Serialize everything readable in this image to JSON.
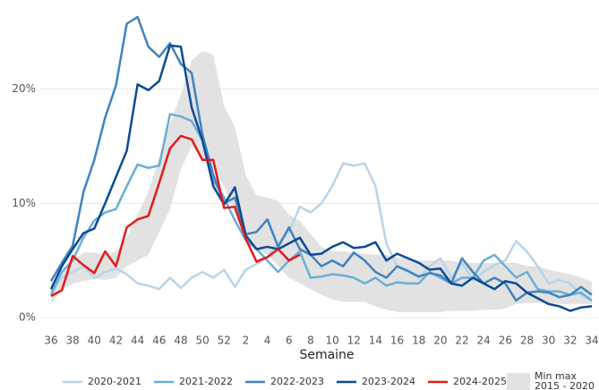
{
  "chart_data": {
    "type": "line",
    "x_label": "Semaine",
    "categories": [
      "36",
      null,
      "38",
      null,
      "40",
      null,
      "42",
      null,
      "44",
      null,
      "46",
      null,
      "48",
      null,
      "50",
      null,
      "52",
      null,
      "2",
      null,
      "4",
      null,
      "6",
      null,
      "8",
      null,
      "10",
      null,
      "12",
      null,
      "14",
      null,
      "16",
      null,
      "18",
      null,
      "20",
      null,
      "22",
      null,
      "24",
      null,
      "26",
      null,
      "28",
      null,
      "30",
      null,
      "32",
      null,
      "34"
    ],
    "ylim": [
      -1,
      27
    ],
    "yticks": [
      {
        "value": 0,
        "label": "0%"
      },
      {
        "value": 10,
        "label": "10%"
      },
      {
        "value": 20,
        "label": "20%"
      }
    ],
    "grid": true,
    "band": {
      "name": [
        "Min max",
        "2015 - 2020"
      ],
      "color": "#e2e2e2",
      "upper": [
        3,
        4,
        5,
        5.7,
        5.7,
        5.5,
        5.8,
        7,
        9,
        11,
        14,
        17,
        19.5,
        22.5,
        23.3,
        23,
        18.5,
        16.7,
        12.5,
        10.7,
        10.5,
        10.2,
        9,
        8.5,
        7.3,
        6.2,
        5.8,
        5.8,
        5.7,
        5.6,
        5.5,
        5.5,
        5.3,
        5.2,
        5.0,
        5.0,
        5.0,
        5.0,
        4.8,
        4.8,
        4.8,
        4.8,
        4.8,
        4.8,
        4.5,
        4.5,
        4.2,
        4.0,
        3.8,
        3.5,
        3.2
      ],
      "lower": [
        1.2,
        2.5,
        3.0,
        3.2,
        3.4,
        3.3,
        3.5,
        4.5,
        5,
        5.5,
        7.5,
        9.5,
        13,
        15,
        14,
        13,
        11.5,
        9,
        7,
        6,
        5.5,
        4.5,
        3.5,
        3.0,
        2.5,
        2.0,
        1.6,
        1.4,
        1.4,
        1.4,
        1.0,
        0.7,
        0.5,
        0.5,
        0.5,
        0.5,
        0.5,
        0.6,
        0.6,
        0.6,
        0.7,
        0.7,
        0.8,
        1.2,
        1.3,
        1.3,
        1.3,
        1.2,
        1.2,
        1.2,
        1.2
      ]
    },
    "series": [
      {
        "name": "2020-2021",
        "color": "#b9d4ea",
        "values": [
          2.3,
          3.5,
          4.0,
          4.5,
          3.5,
          4.0,
          4.3,
          3.8,
          3.0,
          2.8,
          2.5,
          3.5,
          2.6,
          3.5,
          4.0,
          3.5,
          4.2,
          2.7,
          4.2,
          4.7,
          5.3,
          6.5,
          7.5,
          9.7,
          9.2,
          10.0,
          11.5,
          13.5,
          13.3,
          13.5,
          11.5,
          6.5,
          4.5,
          4.0,
          3.5,
          4.5,
          5.2,
          3.5,
          4.8,
          3.3,
          4.0,
          4.6,
          5.0,
          6.7,
          5.8,
          4.5,
          3.0,
          3.3,
          3.0,
          2.0,
          1.5
        ]
      },
      {
        "name": "2021-2022",
        "color": "#6baed6",
        "values": [
          2.0,
          4.0,
          5.0,
          7.0,
          8.5,
          9.2,
          9.5,
          11.5,
          13.4,
          13.1,
          13.3,
          17.8,
          17.6,
          17.2,
          15.5,
          12.0,
          10.5,
          8.5,
          6.8,
          6.0,
          5.0,
          4.0,
          5.0,
          5.8,
          3.5,
          3.6,
          3.8,
          3.7,
          3.5,
          3.0,
          3.5,
          2.8,
          3.1,
          3.0,
          3.0,
          4.0,
          3.5,
          3.0,
          3.5,
          3.5,
          5.0,
          5.5,
          4.5,
          3.5,
          4.0,
          2.5,
          2.3,
          2.3,
          2.0,
          2.2,
          1.5
        ]
      },
      {
        "name": "2022-2023",
        "color": "#3f84c0",
        "values": [
          3.2,
          4.8,
          6.3,
          11.0,
          13.8,
          17.5,
          20.3,
          25.7,
          26.3,
          23.7,
          22.8,
          24.0,
          22.2,
          21.4,
          16.0,
          12.5,
          10.0,
          10.5,
          7.3,
          7.5,
          8.6,
          6.2,
          7.9,
          6.0,
          5.5,
          4.5,
          5.0,
          4.5,
          5.7,
          5.0,
          4.0,
          3.5,
          4.5,
          4.1,
          3.6,
          3.9,
          3.7,
          3.0,
          5.2,
          4.0,
          3.0,
          3.5,
          3.0,
          1.5,
          2.2,
          2.3,
          2.2,
          1.8,
          2.0,
          2.7,
          2.0
        ]
      },
      {
        "name": "2023-2024",
        "color": "#0b4a94",
        "values": [
          2.5,
          4.5,
          6.0,
          7.4,
          7.8,
          10.0,
          12.3,
          14.6,
          20.4,
          19.9,
          20.7,
          23.8,
          23.7,
          18.4,
          15.5,
          11.5,
          9.9,
          11.4,
          7.2,
          6.0,
          6.2,
          6.0,
          6.5,
          7.0,
          5.5,
          5.6,
          6.2,
          6.6,
          6.1,
          6.2,
          6.6,
          5.0,
          5.6,
          5.2,
          4.8,
          4.2,
          4.3,
          3.0,
          2.8,
          3.5,
          3.0,
          2.5,
          3.2,
          3.0,
          2.2,
          1.7,
          1.2,
          1.0,
          0.6,
          0.9,
          1.0
        ]
      },
      {
        "name": "2024-2025",
        "color": "#e31a1c",
        "values": [
          1.9,
          2.4,
          5.4,
          4.6,
          3.9,
          5.8,
          4.5,
          7.9,
          8.6,
          8.9,
          11.8,
          14.8,
          15.9,
          15.6,
          13.8,
          13.8,
          9.6,
          9.7,
          6.9,
          4.9,
          5.3,
          6.0,
          5.0,
          5.5,
          null,
          null,
          null,
          null,
          null,
          null,
          null,
          null,
          null,
          null,
          null,
          null,
          null,
          null,
          null,
          null,
          null,
          null,
          null,
          null,
          null,
          null,
          null,
          null,
          null,
          null,
          null
        ]
      }
    ]
  }
}
